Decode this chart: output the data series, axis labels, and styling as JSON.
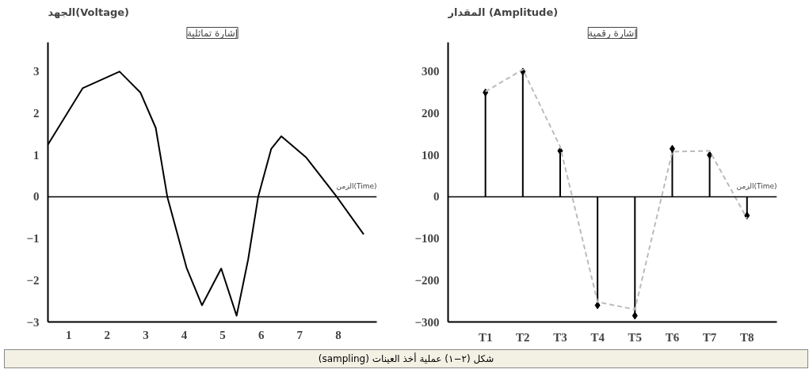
{
  "chart_data": [
    {
      "type": "line",
      "title": "إشارة تماثلية",
      "ylabel": "الجهد(Voltage)",
      "xlabel": "الزمن(Time)",
      "x": [
        0.46,
        1.36,
        2.32,
        2.86,
        3.26,
        3.56,
        4.06,
        4.46,
        4.96,
        5.36,
        5.66,
        5.92,
        6.26,
        6.52,
        7.16,
        7.96,
        8.66
      ],
      "series": [
        {
          "color": "#000000",
          "values": [
            1.25,
            2.6,
            3.0,
            2.5,
            1.65,
            0,
            -1.7,
            -2.6,
            -1.72,
            -2.85,
            -1.5,
            0,
            1.15,
            1.45,
            0.95,
            0,
            -0.9
          ]
        }
      ],
      "xlim": [
        0.46,
        9
      ],
      "xticks": [
        1,
        2,
        3,
        4,
        5,
        6,
        7,
        8
      ],
      "ylim": [
        -3,
        3.7
      ],
      "yticks": [
        -3,
        -2,
        -1,
        0,
        1,
        2,
        3
      ],
      "grid": false,
      "marker": "none",
      "line_style": "solid",
      "ref_lines": [
        {
          "axis": "y",
          "value": 0,
          "color": "#000000"
        }
      ],
      "annotations": [
        "شكل (٢−١) عملية أخذ العينات (sampling)"
      ]
    },
    {
      "type": "lollipop",
      "title": "إشارة رقمية",
      "ylabel": "المقدار (Amplitude)",
      "xlabel": "الزمن(Time)",
      "categories": [
        "T1",
        "T2",
        "T3",
        "T4",
        "T5",
        "T6",
        "T7",
        "T8"
      ],
      "series": [
        {
          "type": "lollipop",
          "color": "#000000",
          "marker": "diamond",
          "values": [
            250,
            300,
            110,
            -260,
            -285,
            115,
            100,
            -45
          ]
        },
        {
          "type": "line",
          "color": "#bbbbbb",
          "line_style": "dashed",
          "values": [
            252,
            305,
            120,
            -252,
            -270,
            108,
            110,
            -52
          ]
        }
      ],
      "ylim": [
        -300,
        370
      ],
      "yticks": [
        -300,
        -200,
        -100,
        0,
        100,
        200,
        300
      ],
      "grid": false,
      "ref_lines": [
        {
          "axis": "y",
          "value": 0,
          "color": "#000000"
        }
      ]
    }
  ]
}
